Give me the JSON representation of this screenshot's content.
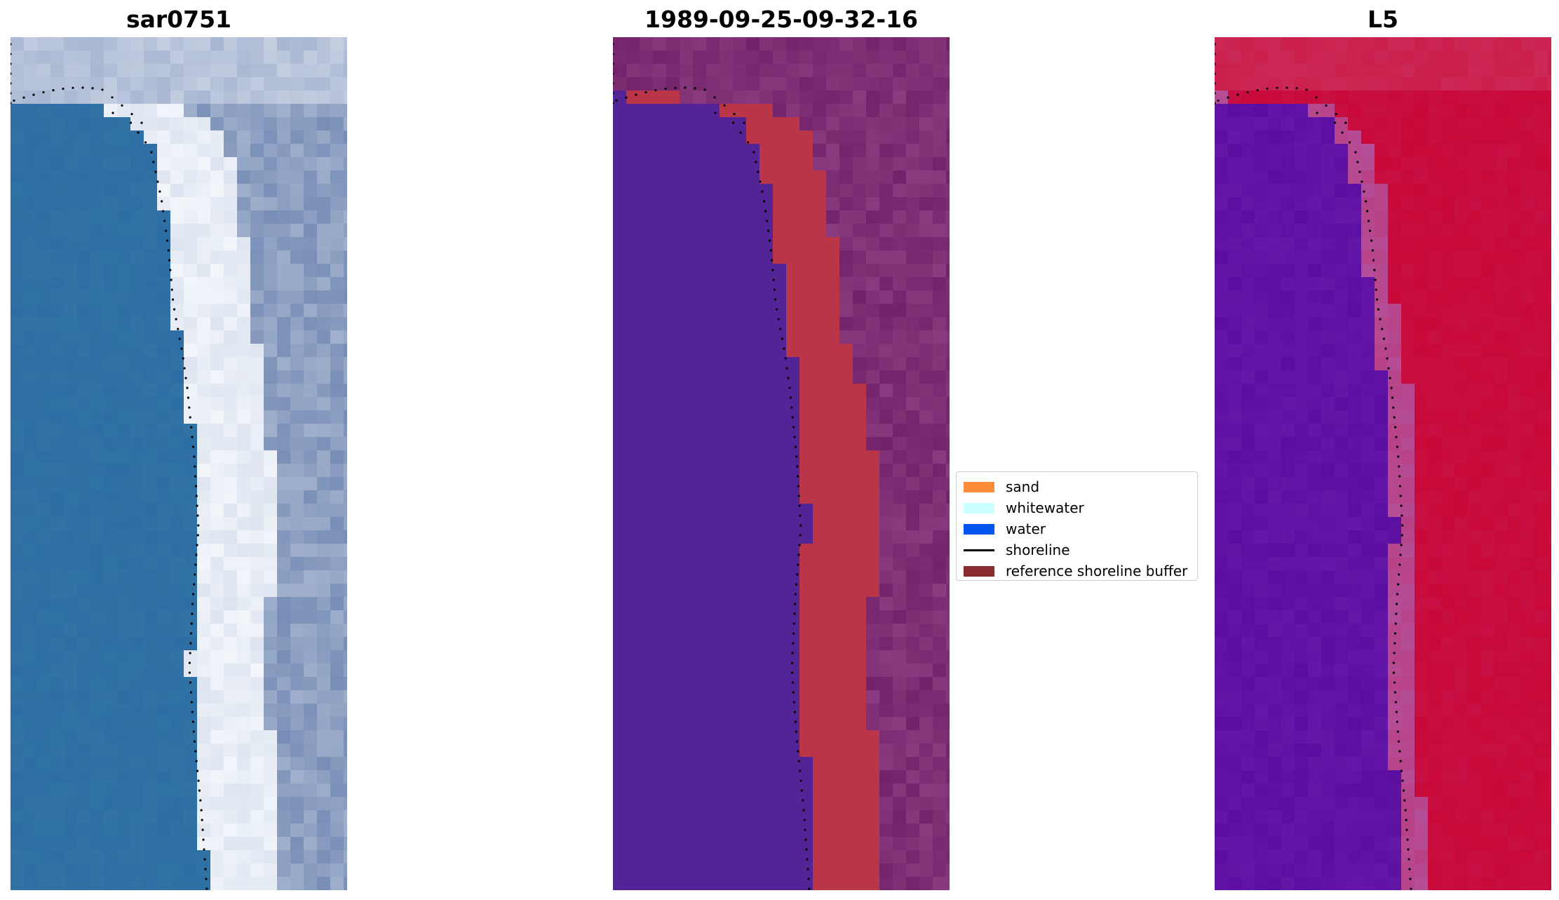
{
  "panels": [
    {
      "title": "sar0751"
    },
    {
      "title": "1989-09-25-09-32-16"
    },
    {
      "title": "L5"
    }
  ],
  "legend": {
    "items": [
      {
        "label": "sand",
        "color": "#ff8c3a"
      },
      {
        "label": "whitewater",
        "color": "#ccffff"
      },
      {
        "label": "water",
        "color": "#0055ee"
      },
      {
        "label": "shoreline",
        "color": "#000000"
      },
      {
        "label": "reference shoreline buffer",
        "color": "#8b2a2f"
      }
    ]
  },
  "colors": {
    "ocean_rgb": "#2d6ea5",
    "surf_rgb": "#f2f6fb",
    "land_rgb": "#4f6b9f",
    "water_class": "#522496",
    "sand_class": "#b93547",
    "buffer_class": "#72236a",
    "mndwi_low": "#5a0ea0",
    "mndwi_high": "#c80838"
  }
}
